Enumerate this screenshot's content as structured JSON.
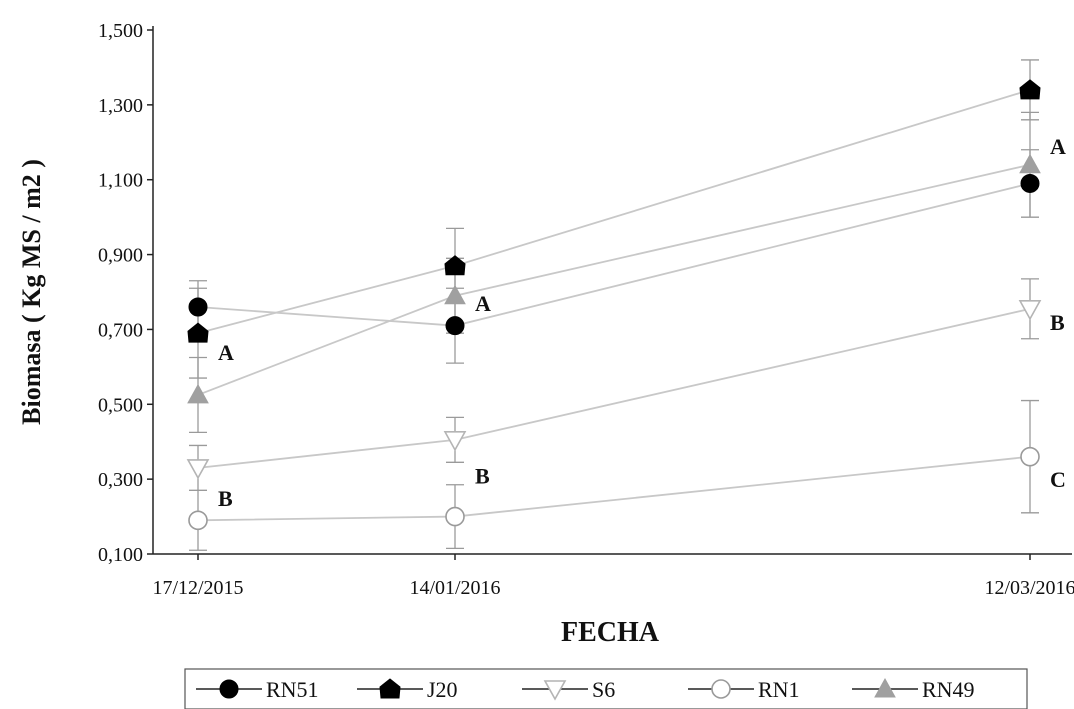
{
  "chart_data": {
    "type": "line",
    "xlabel": "FECHA",
    "ylabel": "Biomasa ( Kg MS / m2 )",
    "ylim": [
      0.1,
      1.5
    ],
    "y_ticks": [
      0.1,
      0.3,
      0.5,
      0.7,
      0.9,
      1.1,
      1.3,
      1.5
    ],
    "y_tick_labels": [
      "0,100",
      "0,300",
      "0,500",
      "0,700",
      "0,900",
      "1,100",
      "1,300",
      "1,500"
    ],
    "x_ticks": [
      "2015-12-17",
      "2016-01-14",
      "2016-03-12"
    ],
    "x_tick_labels": [
      "17/12/2015",
      "14/01/2016",
      "12/03/2016"
    ],
    "grid": false,
    "legend_position": "bottom",
    "series": [
      {
        "name": "RN51",
        "marker": "circle-filled",
        "color": "#000000",
        "line_color": "#c8c8c8",
        "x": [
          "2015-12-17",
          "2016-01-14",
          "2016-03-12"
        ],
        "values": [
          0.76,
          0.71,
          1.09
        ],
        "errors": [
          0.07,
          0.1,
          0.09
        ]
      },
      {
        "name": "J20",
        "marker": "house-filled",
        "color": "#000000",
        "line_color": "#c8c8c8",
        "x": [
          "2015-12-17",
          "2016-01-14",
          "2016-03-12"
        ],
        "values": [
          0.69,
          0.87,
          1.34
        ],
        "errors": [
          0.12,
          0.1,
          0.08
        ]
      },
      {
        "name": "S6",
        "marker": "triangle-down-open",
        "color": "#b4b4b4",
        "line_color": "#c8c8c8",
        "x": [
          "2015-12-17",
          "2016-01-14",
          "2016-03-12"
        ],
        "values": [
          0.33,
          0.405,
          0.755
        ],
        "errors": [
          0.06,
          0.06,
          0.08
        ]
      },
      {
        "name": "RN1",
        "marker": "circle-open",
        "color": "#9a9a9a",
        "line_color": "#c8c8c8",
        "x": [
          "2015-12-17",
          "2016-01-14",
          "2016-03-12"
        ],
        "values": [
          0.19,
          0.2,
          0.36
        ],
        "errors": [
          0.08,
          0.085,
          0.15
        ]
      },
      {
        "name": "RN49",
        "marker": "triangle-up-filled",
        "color": "#a0a0a0",
        "line_color": "#c8c8c8",
        "x": [
          "2015-12-17",
          "2016-01-14",
          "2016-03-12"
        ],
        "values": [
          0.525,
          0.79,
          1.14
        ],
        "errors": [
          0.1,
          0.1,
          0.14
        ]
      }
    ],
    "annotations": [
      {
        "text": "A",
        "x": "2015-12-17",
        "y": 0.64
      },
      {
        "text": "B",
        "x": "2015-12-17",
        "y": 0.25
      },
      {
        "text": "A",
        "x": "2016-01-14",
        "y": 0.77
      },
      {
        "text": "B",
        "x": "2016-01-14",
        "y": 0.31
      },
      {
        "text": "A",
        "x": "2016-03-12",
        "y": 1.19
      },
      {
        "text": "B",
        "x": "2016-03-12",
        "y": 0.72
      },
      {
        "text": "C",
        "x": "2016-03-12",
        "y": 0.3
      }
    ]
  }
}
